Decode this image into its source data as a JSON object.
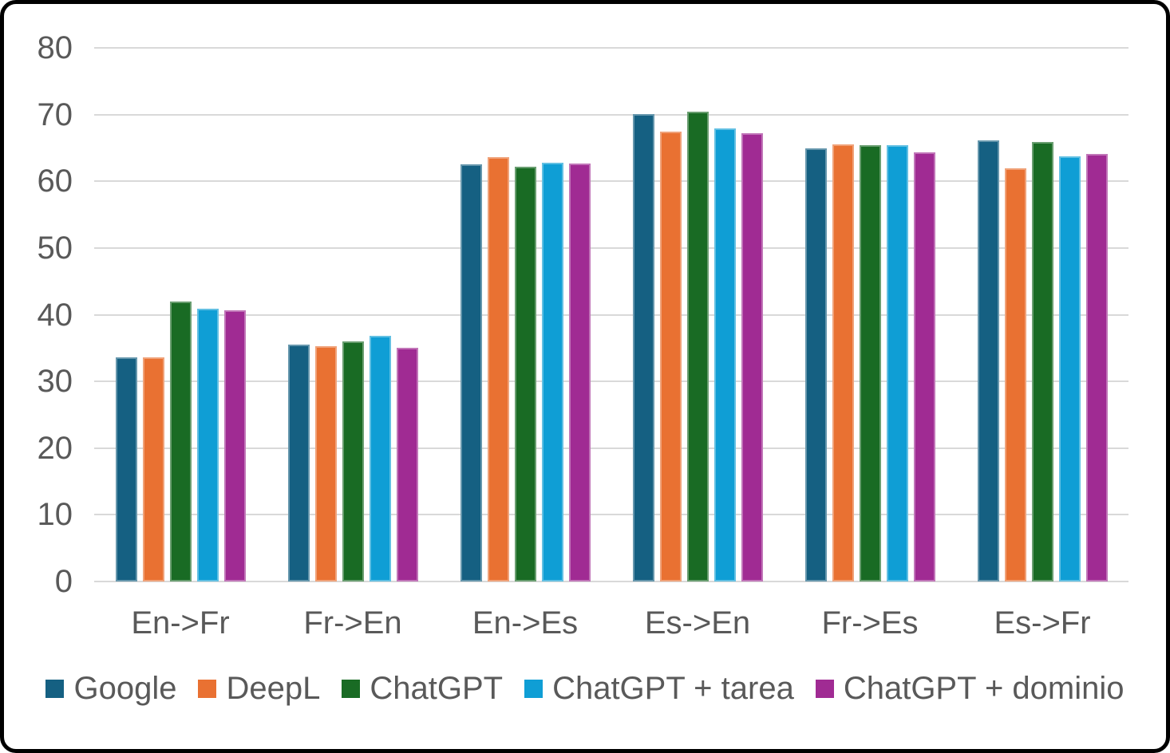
{
  "chart_data": {
    "type": "bar",
    "title": "",
    "xlabel": "",
    "ylabel": "",
    "categories": [
      "En->Fr",
      "Fr->En",
      "En->Es",
      "Es->En",
      "Fr->Es",
      "Es->Fr"
    ],
    "series": [
      {
        "name": "Google",
        "color": "#156082",
        "values": [
          33.6,
          35.5,
          62.6,
          70.1,
          64.9,
          66.1
        ]
      },
      {
        "name": "DeepL",
        "color": "#E97132",
        "values": [
          33.6,
          35.3,
          63.6,
          67.4,
          65.5,
          61.9
        ]
      },
      {
        "name": "ChatGPT",
        "color": "#196B24",
        "values": [
          42.0,
          36.0,
          62.2,
          70.4,
          65.4,
          65.9
        ]
      },
      {
        "name": "ChatGPT + tarea",
        "color": "#0F9ED5",
        "values": [
          40.9,
          36.8,
          62.8,
          67.9,
          65.4,
          63.7
        ]
      },
      {
        "name": "ChatGPT + dominio",
        "color": "#A02B93",
        "values": [
          40.6,
          35.0,
          62.7,
          67.2,
          64.3,
          64.1
        ]
      }
    ],
    "ylim": [
      0,
      80
    ],
    "y_ticks": [
      0,
      10,
      20,
      30,
      40,
      50,
      60,
      70,
      80
    ],
    "grid": true,
    "legend_position": "bottom"
  },
  "styles": {
    "grid_color": "#D9D9D9",
    "axis_line_color": "#D9D9D9",
    "text_color": "#595959",
    "background": "#FFFFFF",
    "frame_border_color": "#000000"
  }
}
